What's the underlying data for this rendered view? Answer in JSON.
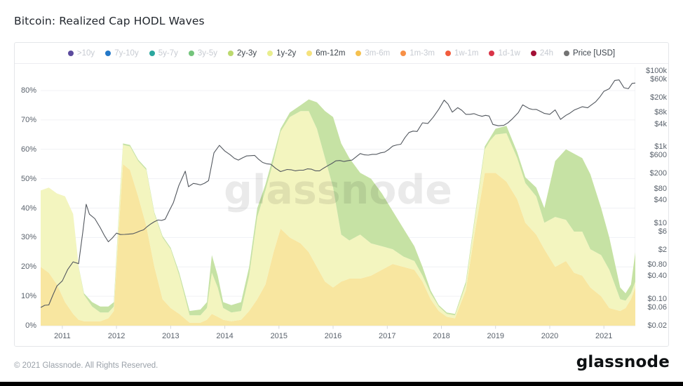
{
  "title": "Bitcoin: Realized Cap HODL Waves",
  "watermark": "glassnode",
  "footer": {
    "copyright": "© 2021 Glassnode. All Rights Reserved.",
    "brand": "glassnode"
  },
  "legend": [
    {
      "label": ">10y",
      "color": "#5c4b9e",
      "active": false
    },
    {
      "label": "7y-10y",
      "color": "#2478c8",
      "active": false
    },
    {
      "label": "5y-7y",
      "color": "#2ba79e",
      "active": false
    },
    {
      "label": "3y-5y",
      "color": "#74c47c",
      "active": false
    },
    {
      "label": "2y-3y",
      "color": "#bcd96e",
      "active": true
    },
    {
      "label": "1y-2y",
      "color": "#e9ee8e",
      "active": true
    },
    {
      "label": "6m-12m",
      "color": "#f5e27d",
      "active": true
    },
    {
      "label": "3m-6m",
      "color": "#f5c150",
      "active": false
    },
    {
      "label": "1m-3m",
      "color": "#f79046",
      "active": false
    },
    {
      "label": "1w-1m",
      "color": "#f25c3d",
      "active": false
    },
    {
      "label": "1d-1w",
      "color": "#d93448",
      "active": false
    },
    {
      "label": "24h",
      "color": "#a31036",
      "active": false
    },
    {
      "label": "Price [USD]",
      "color": "#737373",
      "active": true
    }
  ],
  "chart_data": {
    "type": "area",
    "title": "Bitcoin: Realized Cap HODL Waves",
    "stacked": true,
    "x_range": [
      2010.6,
      2021.58
    ],
    "x_ticks": [
      2011,
      2012,
      2013,
      2014,
      2015,
      2016,
      2017,
      2018,
      2019,
      2020,
      2021
    ],
    "left_axis": {
      "unit": "%",
      "ticks": [
        0,
        10,
        20,
        30,
        40,
        50,
        60,
        70,
        80
      ],
      "range": [
        0,
        88
      ],
      "grid": true
    },
    "right_axis": {
      "label": "Price [USD]",
      "scale": "log",
      "tick_labels": [
        "$100k",
        "$60k",
        "$20k",
        "$8k",
        "$4k",
        "$1k",
        "$600",
        "$200",
        "$80",
        "$40",
        "$10",
        "$6",
        "$2",
        "$0.80",
        "$0.40",
        "$0.10",
        "$0.06",
        "$0.02"
      ],
      "tick_values": [
        100000,
        60000,
        20000,
        8000,
        4000,
        1000,
        600,
        200,
        80,
        40,
        10,
        6,
        2,
        0.8,
        0.4,
        0.1,
        0.06,
        0.02
      ]
    },
    "x_years": [
      2010.6,
      2010.75,
      2010.9,
      2011.05,
      2011.2,
      2011.3,
      2011.4,
      2011.55,
      2011.7,
      2011.85,
      2011.95,
      2012.05,
      2012.12,
      2012.25,
      2012.4,
      2012.55,
      2012.7,
      2012.85,
      2013.0,
      2013.16,
      2013.35,
      2013.55,
      2013.67,
      2013.76,
      2013.87,
      2013.97,
      2014.12,
      2014.3,
      2014.45,
      2014.6,
      2014.75,
      2014.9,
      2015.03,
      2015.2,
      2015.4,
      2015.55,
      2015.7,
      2015.85,
      2016.0,
      2016.15,
      2016.3,
      2016.5,
      2016.7,
      2016.9,
      2017.1,
      2017.3,
      2017.5,
      2017.65,
      2017.8,
      2017.95,
      2018.1,
      2018.25,
      2018.45,
      2018.6,
      2018.8,
      2018.9,
      2019.0,
      2019.2,
      2019.4,
      2019.55,
      2019.75,
      2019.9,
      2020.1,
      2020.3,
      2020.45,
      2020.6,
      2020.75,
      2020.95,
      2021.1,
      2021.3,
      2021.4,
      2021.5,
      2021.58
    ],
    "series": [
      {
        "name": "6m-12m",
        "color": "#f8e6a0",
        "values": [
          20,
          18,
          14,
          8,
          4,
          2,
          1.5,
          1.5,
          1.5,
          2.5,
          5,
          35,
          55,
          53,
          44,
          34,
          20,
          9,
          6,
          4,
          1,
          1,
          2,
          4,
          3,
          2,
          1.5,
          2,
          5,
          9,
          14,
          25,
          33,
          30,
          28,
          25,
          20,
          15,
          13,
          15,
          16,
          16,
          17,
          19,
          21,
          20,
          19,
          15,
          9,
          5,
          3,
          2.5,
          12,
          30,
          52,
          52,
          52,
          49,
          43,
          35,
          31,
          26,
          20,
          22,
          18,
          17,
          13,
          10,
          6,
          5,
          6,
          9,
          13
        ]
      },
      {
        "name": "1y-2y",
        "color": "#f3f5bf",
        "values": [
          26,
          29,
          31,
          36,
          34,
          18,
          9,
          5,
          3,
          2,
          1.5,
          5,
          6.5,
          8,
          12,
          19,
          18,
          21,
          20,
          13,
          2.5,
          2.5,
          4,
          14,
          10,
          4,
          3,
          3,
          12,
          28,
          32,
          31,
          33,
          41,
          45,
          48,
          47,
          42,
          34,
          16,
          13,
          15,
          11,
          8,
          5,
          3.5,
          3,
          2,
          2,
          1.5,
          1,
          1,
          2,
          4,
          8,
          11,
          13,
          16.5,
          14,
          13.5,
          13,
          9,
          17,
          14,
          14,
          15,
          13,
          14,
          13,
          4,
          2.5,
          2,
          2
        ]
      },
      {
        "name": "2y-3y",
        "color": "#c6e2a4",
        "values": [
          0,
          0,
          0,
          0,
          0,
          0.2,
          0.5,
          1.5,
          2,
          2,
          1.5,
          1,
          0.5,
          0.5,
          0.5,
          0.5,
          0.5,
          0.5,
          0.5,
          1,
          1.5,
          2,
          2,
          6,
          4,
          2,
          2.5,
          3,
          3,
          3,
          2,
          2,
          1,
          1.5,
          2,
          4,
          9,
          16,
          24,
          31,
          28,
          21,
          22,
          18,
          13,
          9.5,
          5,
          3,
          1,
          0.5,
          0.5,
          0.5,
          1,
          1,
          1,
          1,
          2,
          2.5,
          2,
          2,
          3,
          5,
          19,
          24,
          26.5,
          25,
          25.5,
          16,
          11,
          4,
          2.5,
          3,
          10
        ]
      }
    ],
    "price": {
      "name": "Price [USD]",
      "color": "#53585f",
      "x": [
        2010.6,
        2010.75,
        2010.9,
        2011.0,
        2011.1,
        2011.2,
        2011.3,
        2011.38,
        2011.44,
        2011.5,
        2011.6,
        2011.7,
        2011.85,
        2012.0,
        2012.15,
        2012.3,
        2012.5,
        2012.7,
        2012.9,
        2013.05,
        2013.15,
        2013.27,
        2013.33,
        2013.42,
        2013.55,
        2013.7,
        2013.8,
        2013.9,
        2014.0,
        2014.1,
        2014.25,
        2014.4,
        2014.55,
        2014.7,
        2014.85,
        2015.03,
        2015.15,
        2015.3,
        2015.45,
        2015.6,
        2015.75,
        2015.9,
        2016.05,
        2016.2,
        2016.35,
        2016.5,
        2016.65,
        2016.8,
        2016.95,
        2017.1,
        2017.25,
        2017.4,
        2017.55,
        2017.65,
        2017.75,
        2017.85,
        2017.95,
        2018.05,
        2018.12,
        2018.2,
        2018.3,
        2018.45,
        2018.6,
        2018.75,
        2018.88,
        2018.95,
        2019.05,
        2019.15,
        2019.3,
        2019.42,
        2019.5,
        2019.62,
        2019.75,
        2019.9,
        2020.0,
        2020.1,
        2020.2,
        2020.3,
        2020.45,
        2020.6,
        2020.7,
        2020.85,
        2021.0,
        2021.1,
        2021.2,
        2021.28,
        2021.37,
        2021.45,
        2021.52,
        2021.58
      ],
      "values": [
        0.06,
        0.07,
        0.22,
        0.3,
        0.6,
        0.95,
        0.85,
        6,
        31,
        17,
        13,
        7.5,
        3.2,
        5.4,
        5.0,
        5.2,
        6.6,
        10.8,
        12.6,
        34,
        95,
        230,
        90,
        110,
        100,
        130,
        700,
        1100,
        780,
        620,
        450,
        580,
        600,
        390,
        350,
        225,
        255,
        235,
        245,
        260,
        235,
        320,
        430,
        415,
        450,
        670,
        610,
        640,
        730,
        1050,
        1180,
        2400,
        2550,
        4300,
        4150,
        6100,
        9800,
        17000,
        13500,
        8200,
        10800,
        7200,
        7500,
        6400,
        6500,
        3900,
        3600,
        3700,
        5300,
        8000,
        12800,
        10200,
        9700,
        7600,
        7200,
        9400,
        5300,
        6800,
        9300,
        11400,
        10700,
        15500,
        29000,
        34000,
        56000,
        58000,
        36000,
        34000,
        47000,
        48000
      ]
    }
  }
}
